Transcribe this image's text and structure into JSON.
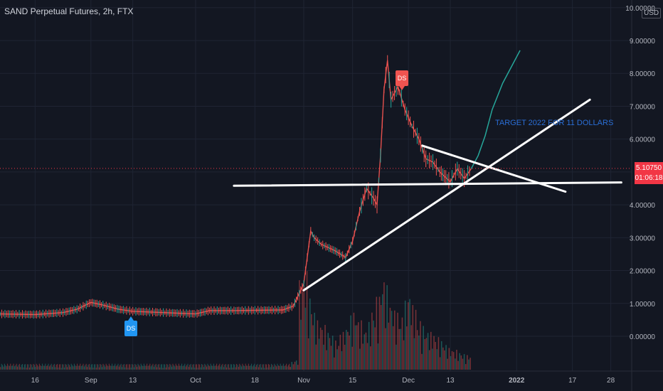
{
  "header": {
    "title": "SAND Perpetual Futures, 2h, FTX",
    "currency": "USD"
  },
  "current_price": {
    "value": "5.10750",
    "countdown": "01:06:18"
  },
  "annotation": "TARGET 2022  FOR 11 DOLLARS",
  "markers": [
    {
      "label": "DS",
      "color": "#f05350"
    },
    {
      "label": "DS",
      "color": "#2196f3"
    }
  ],
  "colors": {
    "background": "#131722",
    "up": "#26a69a",
    "down": "#ef5350",
    "projection": "#26a69a",
    "trendline": "#ffffff",
    "price_line": "#f23645"
  },
  "chart_data": {
    "type": "line",
    "title": "SAND Perpetual Futures, 2h, FTX",
    "ylim": [
      -1.0,
      10.0
    ],
    "y_ticks": [
      0.0,
      1.0,
      2.0,
      3.0,
      4.0,
      5.0,
      6.0,
      7.0,
      8.0,
      9.0,
      10.0
    ],
    "y_tick_labels": [
      "0.00000",
      "1.00000",
      "2.00000",
      "3.00000",
      "4.00000",
      "",
      "6.00000",
      "7.00000",
      "8.00000",
      "9.00000",
      "10.00000"
    ],
    "x_ticks": [
      {
        "label": "16",
        "date": "2021-08-16"
      },
      {
        "label": "Sep",
        "date": "2021-09-01"
      },
      {
        "label": "13",
        "date": "2021-09-13"
      },
      {
        "label": "Oct",
        "date": "2021-10-01"
      },
      {
        "label": "18",
        "date": "2021-10-18"
      },
      {
        "label": "Nov",
        "date": "2021-11-01"
      },
      {
        "label": "15",
        "date": "2021-11-15"
      },
      {
        "label": "Dec",
        "date": "2021-12-01"
      },
      {
        "label": "13",
        "date": "2021-12-13"
      },
      {
        "label": "2022",
        "date": "2022-01-01"
      },
      {
        "label": "17",
        "date": "2022-01-17"
      },
      {
        "label": "28",
        "date": "2022-01-28"
      }
    ],
    "price_series": {
      "name": "SAND",
      "points": [
        [
          "2021-08-06",
          0.68
        ],
        [
          "2021-08-16",
          0.66
        ],
        [
          "2021-08-24",
          0.72
        ],
        [
          "2021-08-28",
          0.82
        ],
        [
          "2021-09-01",
          1.03
        ],
        [
          "2021-09-04",
          0.96
        ],
        [
          "2021-09-09",
          0.82
        ],
        [
          "2021-09-13",
          0.76
        ],
        [
          "2021-09-20",
          0.73
        ],
        [
          "2021-10-01",
          0.68
        ],
        [
          "2021-10-05",
          0.78
        ],
        [
          "2021-10-12",
          0.78
        ],
        [
          "2021-10-18",
          0.79
        ],
        [
          "2021-10-26",
          0.8
        ],
        [
          "2021-10-29",
          0.92
        ],
        [
          "2021-11-01",
          1.6
        ],
        [
          "2021-11-02",
          2.4
        ],
        [
          "2021-11-03",
          3.2
        ],
        [
          "2021-11-04",
          3.0
        ],
        [
          "2021-11-06",
          2.8
        ],
        [
          "2021-11-10",
          2.6
        ],
        [
          "2021-11-13",
          2.4
        ],
        [
          "2021-11-15",
          2.9
        ],
        [
          "2021-11-17",
          3.8
        ],
        [
          "2021-11-19",
          4.5
        ],
        [
          "2021-11-21",
          4.2
        ],
        [
          "2021-11-22",
          4.0
        ],
        [
          "2021-11-23",
          5.5
        ],
        [
          "2021-11-24",
          7.5
        ],
        [
          "2021-11-25",
          8.4
        ],
        [
          "2021-11-26",
          7.2
        ],
        [
          "2021-11-28",
          7.6
        ],
        [
          "2021-11-30",
          6.9
        ],
        [
          "2021-12-02",
          6.4
        ],
        [
          "2021-12-04",
          6.0
        ],
        [
          "2021-12-06",
          5.4
        ],
        [
          "2021-12-08",
          5.3
        ],
        [
          "2021-12-10",
          5.0
        ],
        [
          "2021-12-13",
          4.7
        ],
        [
          "2021-12-15",
          5.1
        ],
        [
          "2021-12-17",
          4.8
        ],
        [
          "2021-12-19",
          5.1
        ]
      ]
    },
    "projection_series": {
      "points": [
        [
          "2021-12-19",
          5.1
        ],
        [
          "2021-12-21",
          5.5
        ],
        [
          "2021-12-23",
          6.1
        ],
        [
          "2021-12-25",
          6.9
        ],
        [
          "2021-12-28",
          7.7
        ],
        [
          "2021-12-31",
          8.3
        ],
        [
          "2022-01-02",
          8.7
        ]
      ]
    },
    "trendlines": [
      {
        "name": "rising-support",
        "from": [
          "2021-11-01",
          1.4
        ],
        "to": [
          "2022-01-22",
          7.2
        ]
      },
      {
        "name": "horizontal-support",
        "from": [
          "2021-10-12",
          4.58
        ],
        "to": [
          "2022-01-31",
          4.68
        ]
      },
      {
        "name": "descending-resistance",
        "from": [
          "2021-12-05",
          5.8
        ],
        "to": [
          "2022-01-15",
          4.4
        ]
      }
    ],
    "volume": {
      "start": "2021-10-28",
      "end": "2021-12-19",
      "max": 1.0,
      "relative_values": [
        0.08,
        0.1,
        0.9,
        1.0,
        0.75,
        0.6,
        0.5,
        0.45,
        0.4,
        0.35,
        0.3,
        0.38,
        0.45,
        0.55,
        0.6,
        0.5,
        0.42,
        0.48,
        0.62,
        0.75,
        0.95,
        0.85,
        0.7,
        0.6,
        0.55,
        0.7,
        0.8,
        0.65,
        0.5,
        0.45,
        0.4,
        0.38,
        0.33,
        0.3,
        0.26,
        0.22,
        0.2,
        0.18,
        0.16,
        0.15
      ]
    },
    "volume_baseline": {
      "start": "2021-08-06",
      "end": "2021-10-28",
      "relative": 0.06
    }
  }
}
